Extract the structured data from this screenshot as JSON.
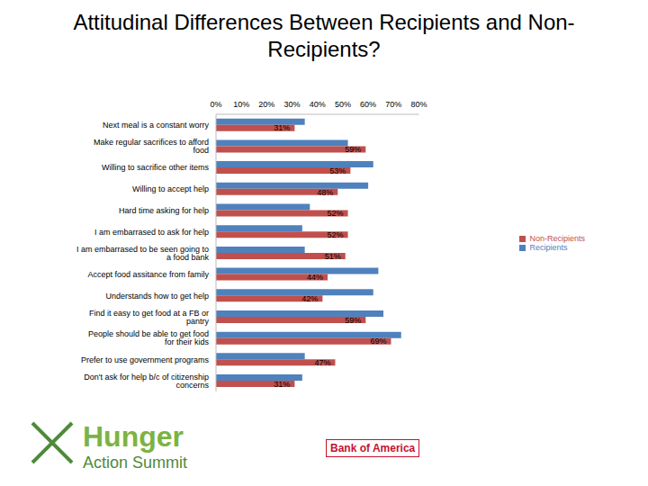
{
  "title": "Attitudinal Differences Between Recipients and Non-Recipients?",
  "chart_data": {
    "type": "bar",
    "orientation": "horizontal",
    "categories": [
      "Next meal is a constant worry",
      "Make regular sacrifices to afford food",
      "Willing to sacrifice other items",
      "Willing to accept help",
      "Hard time asking for help",
      "I am embarrased to ask for help",
      "I am embarrased to be seen going to a food bank",
      "Accept food assitance from family",
      "Understands how to get help",
      "Find it easy to get food at a FB or pantry",
      "People should be able to get food for their kids",
      "Prefer to use government programs",
      "Don't ask for help b/c of citizenship concerns"
    ],
    "series": [
      {
        "name": "Recipients",
        "color": "#4f81bd",
        "values": [
          35,
          52,
          62,
          60,
          37,
          34,
          35,
          64,
          62,
          66,
          73,
          35,
          34
        ]
      },
      {
        "name": "Non-Recipients",
        "color": "#c0504d",
        "values": [
          31,
          59,
          53,
          48,
          52,
          52,
          51,
          44,
          42,
          59,
          69,
          47,
          31
        ],
        "value_labels": [
          "31%",
          "59%",
          "53%",
          "48%",
          "52%",
          "52%",
          "51%",
          "44%",
          "42%",
          "59%",
          "69%",
          "47%",
          "31%"
        ]
      }
    ],
    "xlim": [
      0,
      80
    ],
    "xticks": [
      {
        "value": 0,
        "label": "0%"
      },
      {
        "value": 10,
        "label": "10%"
      },
      {
        "value": 20,
        "label": "20%"
      },
      {
        "value": 30,
        "label": "30%"
      },
      {
        "value": 40,
        "label": "40%"
      },
      {
        "value": 50,
        "label": "50%"
      },
      {
        "value": 60,
        "label": "60%"
      },
      {
        "value": 70,
        "label": "70%"
      },
      {
        "value": 80,
        "label": "80%"
      }
    ],
    "grid": false,
    "legend": "right",
    "data_labels": true
  },
  "footer": {
    "logo_line1": "Hunger",
    "logo_line2": "Action Summit",
    "sponsor": "Bank of America"
  }
}
